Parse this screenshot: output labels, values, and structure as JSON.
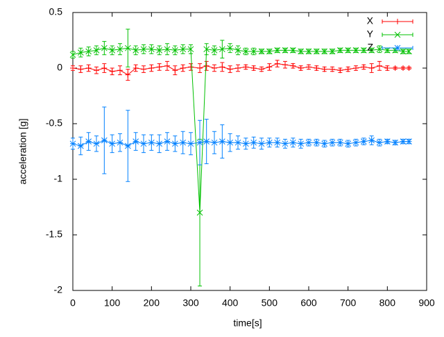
{
  "chart_data": {
    "type": "errorline",
    "xlabel": "time[s]",
    "ylabel": "acceleration [g]",
    "x": [
      0,
      20,
      40,
      60,
      80,
      100,
      120,
      140,
      160,
      180,
      200,
      220,
      240,
      260,
      280,
      300,
      323,
      340,
      360,
      380,
      400,
      420,
      440,
      460,
      480,
      500,
      520,
      540,
      560,
      580,
      600,
      620,
      640,
      660,
      680,
      700,
      720,
      740,
      760,
      780,
      800,
      820,
      840,
      855
    ],
    "series": [
      {
        "name": "X",
        "color": "#ff0000",
        "marker": "plus",
        "values": [
          0.0,
          -0.01,
          0.0,
          -0.02,
          0.0,
          -0.03,
          -0.02,
          -0.06,
          0.0,
          -0.01,
          0.0,
          0.01,
          0.02,
          -0.02,
          0.0,
          0.01,
          0.0,
          0.02,
          0.0,
          0.01,
          -0.01,
          0.0,
          0.01,
          0.0,
          -0.01,
          0.01,
          0.04,
          0.03,
          0.02,
          0.0,
          0.01,
          0.0,
          -0.01,
          -0.01,
          -0.02,
          -0.01,
          0.0,
          0.01,
          0.0,
          0.02,
          0.0,
          0.0,
          0.0,
          0.0
        ],
        "errors": [
          0.02,
          0.03,
          0.03,
          0.03,
          0.04,
          0.03,
          0.04,
          0.05,
          0.03,
          0.03,
          0.03,
          0.03,
          0.04,
          0.04,
          0.03,
          0.03,
          0.04,
          0.04,
          0.03,
          0.04,
          0.03,
          0.03,
          0.02,
          0.02,
          0.02,
          0.03,
          0.03,
          0.03,
          0.02,
          0.02,
          0.02,
          0.02,
          0.02,
          0.02,
          0.02,
          0.02,
          0.02,
          0.02,
          0.04,
          0.04,
          0.02,
          0.01,
          0.01,
          0.01
        ]
      },
      {
        "name": "Y",
        "color": "#00c000",
        "marker": "cross",
        "values": [
          0.12,
          0.14,
          0.15,
          0.16,
          0.18,
          0.16,
          0.17,
          0.18,
          0.16,
          0.17,
          0.17,
          0.16,
          0.17,
          0.16,
          0.17,
          0.17,
          -1.3,
          0.17,
          0.16,
          0.17,
          0.18,
          0.16,
          0.15,
          0.15,
          0.15,
          0.15,
          0.16,
          0.16,
          0.16,
          0.15,
          0.15,
          0.15,
          0.15,
          0.15,
          0.16,
          0.16,
          0.16,
          0.16,
          0.16,
          0.17,
          0.16,
          0.16,
          0.15,
          0.15
        ],
        "errors": [
          0.03,
          0.04,
          0.04,
          0.04,
          0.06,
          0.04,
          0.05,
          0.17,
          0.04,
          0.04,
          0.04,
          0.04,
          0.05,
          0.04,
          0.04,
          0.04,
          0.66,
          0.05,
          0.04,
          0.08,
          0.04,
          0.04,
          0.03,
          0.03,
          0.02,
          0.02,
          0.02,
          0.02,
          0.02,
          0.02,
          0.02,
          0.02,
          0.02,
          0.02,
          0.02,
          0.02,
          0.02,
          0.02,
          0.02,
          0.03,
          0.02,
          0.02,
          0.02,
          0.02
        ]
      },
      {
        "name": "Z",
        "color": "#0080ff",
        "marker": "star",
        "values": [
          -0.68,
          -0.7,
          -0.66,
          -0.68,
          -0.65,
          -0.68,
          -0.67,
          -0.7,
          -0.66,
          -0.68,
          -0.67,
          -0.68,
          -0.66,
          -0.68,
          -0.67,
          -0.68,
          -0.67,
          -0.66,
          -0.67,
          -0.66,
          -0.67,
          -0.67,
          -0.68,
          -0.67,
          -0.68,
          -0.67,
          -0.67,
          -0.68,
          -0.67,
          -0.68,
          -0.67,
          -0.67,
          -0.68,
          -0.67,
          -0.67,
          -0.68,
          -0.67,
          -0.66,
          -0.65,
          -0.67,
          -0.66,
          -0.67,
          -0.66,
          -0.66
        ],
        "errors": [
          0.05,
          0.08,
          0.08,
          0.07,
          0.3,
          0.08,
          0.08,
          0.32,
          0.08,
          0.08,
          0.07,
          0.08,
          0.08,
          0.07,
          0.1,
          0.1,
          0.2,
          0.2,
          0.1,
          0.15,
          0.08,
          0.06,
          0.05,
          0.05,
          0.05,
          0.04,
          0.04,
          0.04,
          0.04,
          0.04,
          0.03,
          0.03,
          0.03,
          0.03,
          0.03,
          0.03,
          0.03,
          0.03,
          0.04,
          0.03,
          0.02,
          0.02,
          0.02,
          0.02
        ]
      }
    ],
    "xlim": [
      0,
      900
    ],
    "xticks": [
      0,
      100,
      200,
      300,
      400,
      500,
      600,
      700,
      800,
      900
    ],
    "ylim": [
      -2,
      0.5
    ],
    "yticks": [
      -2,
      -1.5,
      -1,
      -0.5,
      0,
      0.5
    ],
    "legend": "top-right"
  }
}
